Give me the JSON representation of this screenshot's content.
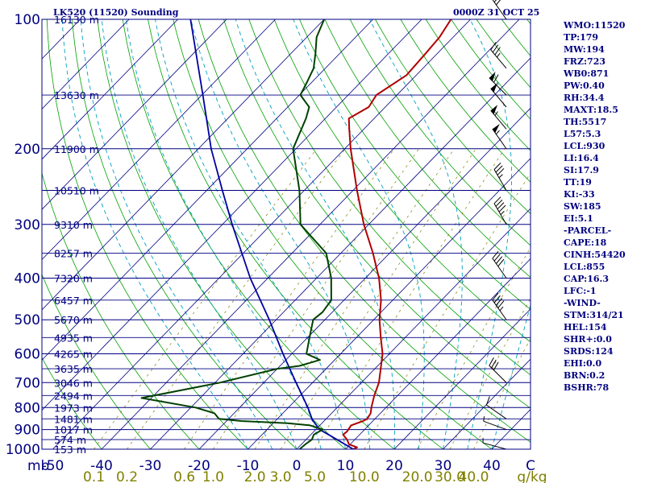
{
  "header": {
    "station": "LK520 (11520) Sounding",
    "valid_time": "0000Z 31 OCT 25"
  },
  "indices": [
    "WMO:11520",
    "TP:179",
    "MW:194",
    "FRZ:723",
    "WB0:871",
    "PW:0.40",
    "RH:34.4",
    "MAXT:18.5",
    "TH:5517",
    "L57:5.3",
    "LCL:930",
    "LI:16.4",
    "SI:17.9",
    "TT:19",
    "KI:-33",
    "SW:185",
    "EI:5.1",
    "-PARCEL-",
    "CAPE:18",
    "CINH:54420",
    "LCL:855",
    "CAP:16.3",
    "LFC:-1",
    "-WIND-",
    "STM:314/21",
    "HEL:154",
    "SHR+:0.0",
    "SRDS:124",
    "EHI:0.0",
    "BRN:0.2",
    "BSHR:78"
  ],
  "colors": {
    "isobar": "#000080",
    "isotherm": "#000080",
    "dry_adiabat": "#00a000",
    "moist_adiabat": "#00a0c0",
    "mixing_ratio": "#808000",
    "temperature": "#b00000",
    "dewpoint": "#004000",
    "parcel": "#0000a0",
    "labels": "#000080",
    "mixing_label": "#808000"
  },
  "chart_data": {
    "type": "line",
    "diagram": "skew-T log-P",
    "title": "LK520 (11520) Sounding",
    "subtitle": "0000Z 31 OCT 25",
    "pressure_unit_label": "mb",
    "temperature_unit_label": "C",
    "mixing_ratio_unit_label": "g/kg",
    "pressure_range_hPa": [
      1000,
      100
    ],
    "temperature_range_C": [
      -50,
      50
    ],
    "pressure_ticks": [
      {
        "label": "100",
        "p": 100
      },
      {
        "label": "200",
        "p": 200
      },
      {
        "label": "300",
        "p": 300
      },
      {
        "label": "400",
        "p": 400
      },
      {
        "label": "500",
        "p": 500
      },
      {
        "label": "600",
        "p": 600
      },
      {
        "label": "700",
        "p": 700
      },
      {
        "label": "800",
        "p": 800
      },
      {
        "label": "900",
        "p": 900
      },
      {
        "label": "1000",
        "p": 1000
      }
    ],
    "temperature_ticks": [
      -50,
      -40,
      -30,
      -20,
      -10,
      0,
      10,
      20,
      30,
      40
    ],
    "height_labels": [
      {
        "label": "16130 m",
        "p": 100
      },
      {
        "label": "13630 m",
        "p": 150
      },
      {
        "label": "11900 m",
        "p": 200
      },
      {
        "label": "10510 m",
        "p": 250
      },
      {
        "label": "9310 m",
        "p": 300
      },
      {
        "label": "8257 m",
        "p": 350
      },
      {
        "label": "7320 m",
        "p": 400
      },
      {
        "label": "6457 m",
        "p": 450
      },
      {
        "label": "5670 m",
        "p": 500
      },
      {
        "label": "4935 m",
        "p": 550
      },
      {
        "label": "4265 m",
        "p": 600
      },
      {
        "label": "3635 m",
        "p": 650
      },
      {
        "label": "3046 m",
        "p": 700
      },
      {
        "label": "2494 m",
        "p": 750
      },
      {
        "label": "1973 m",
        "p": 800
      },
      {
        "label": "1481 m",
        "p": 850
      },
      {
        "label": "1017 m",
        "p": 900
      },
      {
        "label": "574 m",
        "p": 950
      },
      {
        "label": "153 m",
        "p": 1000
      }
    ],
    "mixing_ratio_labels": [
      "0.1",
      "0.2",
      "0.6",
      "1.0",
      "2.0",
      "3.0",
      "5.0",
      "10.0",
      "20.0",
      "30.0",
      "40.0"
    ],
    "mixing_ratio_values": [
      0.1,
      0.2,
      0.6,
      1.0,
      2.0,
      3.0,
      5.0,
      10.0,
      20.0,
      30.0,
      40.0
    ],
    "temperature_profile": [
      {
        "p": 1000,
        "t": 11.6
      },
      {
        "p": 990,
        "t": 12.0
      },
      {
        "p": 975,
        "t": 9.8
      },
      {
        "p": 950,
        "t": 8.4
      },
      {
        "p": 925,
        "t": 6.6
      },
      {
        "p": 910,
        "t": 6.8
      },
      {
        "p": 880,
        "t": 6.4
      },
      {
        "p": 860,
        "t": 8.0
      },
      {
        "p": 850,
        "t": 8.4
      },
      {
        "p": 825,
        "t": 8.0
      },
      {
        "p": 800,
        "t": 7.0
      },
      {
        "p": 750,
        "t": 5.2
      },
      {
        "p": 700,
        "t": 3.6
      },
      {
        "p": 650,
        "t": 1.2
      },
      {
        "p": 600,
        "t": -1.4
      },
      {
        "p": 550,
        "t": -5.0
      },
      {
        "p": 500,
        "t": -8.8
      },
      {
        "p": 450,
        "t": -12.4
      },
      {
        "p": 400,
        "t": -17.2
      },
      {
        "p": 350,
        "t": -23.4
      },
      {
        "p": 300,
        "t": -31.0
      },
      {
        "p": 250,
        "t": -39.2
      },
      {
        "p": 200,
        "t": -48.8
      },
      {
        "p": 180,
        "t": -53.0
      },
      {
        "p": 170,
        "t": -55.2
      },
      {
        "p": 160,
        "t": -53.4
      },
      {
        "p": 150,
        "t": -54.2
      },
      {
        "p": 135,
        "t": -52.0
      },
      {
        "p": 120,
        "t": -52.4
      },
      {
        "p": 110,
        "t": -52.8
      },
      {
        "p": 100,
        "t": -54.0
      }
    ],
    "dewpoint_profile": [
      {
        "p": 1000,
        "t": 0.6
      },
      {
        "p": 975,
        "t": 0.8
      },
      {
        "p": 950,
        "t": 1.2
      },
      {
        "p": 925,
        "t": 0.6
      },
      {
        "p": 900,
        "t": 1.4
      },
      {
        "p": 880,
        "t": -2.0
      },
      {
        "p": 870,
        "t": -7.0
      },
      {
        "p": 860,
        "t": -17.0
      },
      {
        "p": 850,
        "t": -22.0
      },
      {
        "p": 825,
        "t": -24.0
      },
      {
        "p": 800,
        "t": -29.0
      },
      {
        "p": 760,
        "t": -42.0
      },
      {
        "p": 700,
        "t": -29.0
      },
      {
        "p": 650,
        "t": -20.0
      },
      {
        "p": 640,
        "t": -16.0
      },
      {
        "p": 620,
        "t": -13.0
      },
      {
        "p": 600,
        "t": -17.0
      },
      {
        "p": 550,
        "t": -19.6
      },
      {
        "p": 500,
        "t": -22.4
      },
      {
        "p": 480,
        "t": -22.0
      },
      {
        "p": 450,
        "t": -22.6
      },
      {
        "p": 400,
        "t": -27.0
      },
      {
        "p": 350,
        "t": -33.0
      },
      {
        "p": 300,
        "t": -44.0
      },
      {
        "p": 250,
        "t": -51.0
      },
      {
        "p": 200,
        "t": -60.6
      },
      {
        "p": 170,
        "t": -64.0
      },
      {
        "p": 160,
        "t": -65.6
      },
      {
        "p": 150,
        "t": -69.8
      },
      {
        "p": 140,
        "t": -71.0
      },
      {
        "p": 130,
        "t": -72.4
      },
      {
        "p": 120,
        "t": -75.0
      },
      {
        "p": 110,
        "t": -78.0
      },
      {
        "p": 100,
        "t": -80.0
      }
    ],
    "parcel_profile": [
      {
        "p": 1000,
        "t": 11.6
      },
      {
        "p": 930,
        "t": 4.2
      },
      {
        "p": 900,
        "t": 0.8
      },
      {
        "p": 855,
        "t": -2.6
      },
      {
        "p": 800,
        "t": -6.0
      },
      {
        "p": 700,
        "t": -13.4
      },
      {
        "p": 600,
        "t": -21.8
      },
      {
        "p": 500,
        "t": -31.4
      },
      {
        "p": 400,
        "t": -43.6
      },
      {
        "p": 300,
        "t": -58.0
      },
      {
        "p": 250,
        "t": -66.8
      },
      {
        "p": 200,
        "t": -77.4
      },
      {
        "p": 150,
        "t": -89.8
      },
      {
        "p": 100,
        "t": -107.4
      }
    ],
    "wind_profile": [
      {
        "p": 1000,
        "dir": 285,
        "kt": 5
      },
      {
        "p": 900,
        "dir": 290,
        "kt": 5
      },
      {
        "p": 850,
        "dir": 305,
        "kt": 10
      },
      {
        "p": 700,
        "dir": 315,
        "kt": 30
      },
      {
        "p": 500,
        "dir": 325,
        "kt": 45
      },
      {
        "p": 400,
        "dir": 325,
        "kt": 40
      },
      {
        "p": 300,
        "dir": 330,
        "kt": 45
      },
      {
        "p": 250,
        "dir": 330,
        "kt": 35
      },
      {
        "p": 200,
        "dir": 325,
        "kt": 55
      },
      {
        "p": 180,
        "dir": 320,
        "kt": 55
      },
      {
        "p": 160,
        "dir": 320,
        "kt": 50
      },
      {
        "p": 150,
        "dir": 315,
        "kt": 60
      },
      {
        "p": 130,
        "dir": 320,
        "kt": 35
      },
      {
        "p": 100,
        "dir": 325,
        "kt": 30
      }
    ]
  }
}
